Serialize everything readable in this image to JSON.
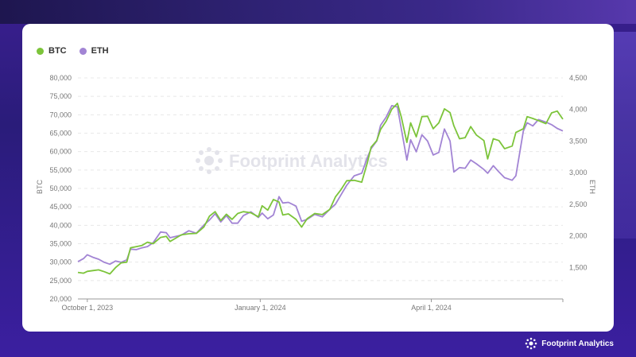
{
  "brand": {
    "watermark": "Footprint Analytics",
    "footer": "Footprint Analytics"
  },
  "colors": {
    "btc": "#7cc43a",
    "eth": "#a284d4",
    "grid": "#e8e8e8",
    "axis": "#999999"
  },
  "chart_data": {
    "type": "line",
    "xlabels": [
      "October 1, 2023",
      "January 1, 2024",
      "April 1, 2024"
    ],
    "xlabel_dates": [
      "2023-10-01",
      "2024-01-01",
      "2024-04-01"
    ],
    "xrange": [
      "2023-09-26",
      "2024-06-10"
    ],
    "y_left": {
      "title": "BTC",
      "ticks": [
        "80,000",
        "75,000",
        "70,000",
        "65,000",
        "60,000",
        "55,000",
        "50,000",
        "45,000",
        "40,000",
        "35,000",
        "30,000",
        "25,000",
        "20,000"
      ],
      "range": [
        20000,
        80000
      ]
    },
    "y_right": {
      "title": "ETH",
      "ticks": [
        "4,500",
        "4,000",
        "3,500",
        "3,000",
        "2,500",
        "2,000",
        "1,500"
      ],
      "range": [
        1000,
        4500
      ]
    },
    "grid": true,
    "legend_position": "top-left",
    "series": [
      {
        "name": "BTC",
        "axis": "left",
        "points": [
          [
            "2023-09-26",
            27200
          ],
          [
            "2023-09-29",
            27000
          ],
          [
            "2023-10-01",
            27500
          ],
          [
            "2023-10-04",
            27700
          ],
          [
            "2023-10-07",
            27900
          ],
          [
            "2023-10-10",
            27400
          ],
          [
            "2023-10-13",
            26800
          ],
          [
            "2023-10-16",
            28500
          ],
          [
            "2023-10-19",
            29800
          ],
          [
            "2023-10-22",
            30000
          ],
          [
            "2023-10-24",
            33900
          ],
          [
            "2023-10-27",
            34200
          ],
          [
            "2023-10-30",
            34500
          ],
          [
            "2023-11-02",
            35400
          ],
          [
            "2023-11-05",
            35000
          ],
          [
            "2023-11-09",
            36700
          ],
          [
            "2023-11-12",
            37000
          ],
          [
            "2023-11-14",
            35600
          ],
          [
            "2023-11-17",
            36500
          ],
          [
            "2023-11-20",
            37400
          ],
          [
            "2023-11-24",
            37700
          ],
          [
            "2023-11-28",
            37800
          ],
          [
            "2023-12-02",
            39500
          ],
          [
            "2023-12-05",
            42500
          ],
          [
            "2023-12-08",
            43700
          ],
          [
            "2023-12-11",
            41300
          ],
          [
            "2023-12-14",
            43000
          ],
          [
            "2023-12-17",
            41600
          ],
          [
            "2023-12-20",
            43200
          ],
          [
            "2023-12-23",
            43700
          ],
          [
            "2023-12-27",
            43400
          ],
          [
            "2023-12-31",
            42300
          ],
          [
            "2024-01-02",
            45300
          ],
          [
            "2024-01-05",
            44100
          ],
          [
            "2024-01-08",
            47000
          ],
          [
            "2024-01-11",
            46300
          ],
          [
            "2024-01-13",
            42800
          ],
          [
            "2024-01-16",
            43100
          ],
          [
            "2024-01-20",
            41600
          ],
          [
            "2024-01-23",
            39500
          ],
          [
            "2024-01-26",
            41800
          ],
          [
            "2024-01-30",
            43200
          ],
          [
            "2024-02-03",
            42900
          ],
          [
            "2024-02-07",
            44300
          ],
          [
            "2024-02-10",
            47700
          ],
          [
            "2024-02-13",
            49700
          ],
          [
            "2024-02-16",
            52100
          ],
          [
            "2024-02-20",
            52200
          ],
          [
            "2024-02-24",
            51700
          ],
          [
            "2024-02-27",
            57000
          ],
          [
            "2024-02-29",
            61200
          ],
          [
            "2024-03-03",
            63000
          ],
          [
            "2024-03-05",
            66000
          ],
          [
            "2024-03-08",
            68300
          ],
          [
            "2024-03-11",
            71500
          ],
          [
            "2024-03-14",
            73100
          ],
          [
            "2024-03-16",
            69500
          ],
          [
            "2024-03-19",
            62500
          ],
          [
            "2024-03-21",
            67800
          ],
          [
            "2024-03-24",
            64000
          ],
          [
            "2024-03-27",
            69500
          ],
          [
            "2024-03-30",
            69600
          ],
          [
            "2024-04-02",
            66200
          ],
          [
            "2024-04-05",
            67800
          ],
          [
            "2024-04-08",
            71600
          ],
          [
            "2024-04-11",
            70600
          ],
          [
            "2024-04-13",
            67000
          ],
          [
            "2024-04-16",
            63500
          ],
          [
            "2024-04-19",
            63800
          ],
          [
            "2024-04-22",
            66800
          ],
          [
            "2024-04-25",
            64500
          ],
          [
            "2024-04-29",
            63000
          ],
          [
            "2024-05-01",
            58000
          ],
          [
            "2024-05-04",
            63500
          ],
          [
            "2024-05-07",
            63000
          ],
          [
            "2024-05-10",
            60800
          ],
          [
            "2024-05-14",
            61500
          ],
          [
            "2024-05-16",
            65200
          ],
          [
            "2024-05-20",
            66200
          ],
          [
            "2024-05-22",
            69500
          ],
          [
            "2024-05-25",
            69000
          ],
          [
            "2024-05-28",
            68400
          ],
          [
            "2024-06-01",
            67600
          ],
          [
            "2024-06-04",
            70500
          ],
          [
            "2024-06-07",
            71000
          ],
          [
            "2024-06-10",
            68800
          ]
        ]
      },
      {
        "name": "ETH",
        "axis": "right",
        "points": [
          [
            "2023-09-26",
            1590
          ],
          [
            "2023-09-29",
            1640
          ],
          [
            "2023-10-01",
            1700
          ],
          [
            "2023-10-04",
            1660
          ],
          [
            "2023-10-07",
            1630
          ],
          [
            "2023-10-10",
            1580
          ],
          [
            "2023-10-13",
            1550
          ],
          [
            "2023-10-16",
            1600
          ],
          [
            "2023-10-19",
            1580
          ],
          [
            "2023-10-22",
            1620
          ],
          [
            "2023-10-24",
            1790
          ],
          [
            "2023-10-27",
            1780
          ],
          [
            "2023-10-30",
            1810
          ],
          [
            "2023-11-02",
            1830
          ],
          [
            "2023-11-05",
            1890
          ],
          [
            "2023-11-09",
            2060
          ],
          [
            "2023-11-12",
            2050
          ],
          [
            "2023-11-14",
            1970
          ],
          [
            "2023-11-17",
            1990
          ],
          [
            "2023-11-20",
            2010
          ],
          [
            "2023-11-24",
            2080
          ],
          [
            "2023-11-28",
            2040
          ],
          [
            "2023-12-02",
            2170
          ],
          [
            "2023-12-05",
            2250
          ],
          [
            "2023-12-08",
            2350
          ],
          [
            "2023-12-11",
            2220
          ],
          [
            "2023-12-14",
            2320
          ],
          [
            "2023-12-17",
            2200
          ],
          [
            "2023-12-20",
            2200
          ],
          [
            "2023-12-23",
            2320
          ],
          [
            "2023-12-27",
            2380
          ],
          [
            "2023-12-31",
            2290
          ],
          [
            "2024-01-02",
            2360
          ],
          [
            "2024-01-05",
            2270
          ],
          [
            "2024-01-08",
            2330
          ],
          [
            "2024-01-11",
            2620
          ],
          [
            "2024-01-13",
            2520
          ],
          [
            "2024-01-16",
            2530
          ],
          [
            "2024-01-20",
            2470
          ],
          [
            "2024-01-23",
            2230
          ],
          [
            "2024-01-26",
            2260
          ],
          [
            "2024-01-30",
            2340
          ],
          [
            "2024-02-03",
            2300
          ],
          [
            "2024-02-07",
            2420
          ],
          [
            "2024-02-10",
            2500
          ],
          [
            "2024-02-13",
            2650
          ],
          [
            "2024-02-16",
            2800
          ],
          [
            "2024-02-20",
            2950
          ],
          [
            "2024-02-24",
            2990
          ],
          [
            "2024-02-27",
            3240
          ],
          [
            "2024-02-29",
            3380
          ],
          [
            "2024-03-03",
            3500
          ],
          [
            "2024-03-05",
            3750
          ],
          [
            "2024-03-08",
            3880
          ],
          [
            "2024-03-11",
            4060
          ],
          [
            "2024-03-14",
            4040
          ],
          [
            "2024-03-16",
            3700
          ],
          [
            "2024-03-19",
            3200
          ],
          [
            "2024-03-21",
            3520
          ],
          [
            "2024-03-24",
            3330
          ],
          [
            "2024-03-27",
            3600
          ],
          [
            "2024-03-30",
            3500
          ],
          [
            "2024-04-02",
            3280
          ],
          [
            "2024-04-05",
            3320
          ],
          [
            "2024-04-08",
            3690
          ],
          [
            "2024-04-11",
            3500
          ],
          [
            "2024-04-13",
            3010
          ],
          [
            "2024-04-16",
            3080
          ],
          [
            "2024-04-19",
            3070
          ],
          [
            "2024-04-22",
            3200
          ],
          [
            "2024-04-25",
            3140
          ],
          [
            "2024-04-29",
            3050
          ],
          [
            "2024-05-01",
            2990
          ],
          [
            "2024-05-04",
            3110
          ],
          [
            "2024-05-07",
            3010
          ],
          [
            "2024-05-10",
            2920
          ],
          [
            "2024-05-14",
            2880
          ],
          [
            "2024-05-16",
            2950
          ],
          [
            "2024-05-20",
            3660
          ],
          [
            "2024-05-22",
            3790
          ],
          [
            "2024-05-25",
            3740
          ],
          [
            "2024-05-28",
            3840
          ],
          [
            "2024-06-01",
            3800
          ],
          [
            "2024-06-04",
            3760
          ],
          [
            "2024-06-07",
            3700
          ],
          [
            "2024-06-10",
            3660
          ]
        ]
      }
    ]
  }
}
